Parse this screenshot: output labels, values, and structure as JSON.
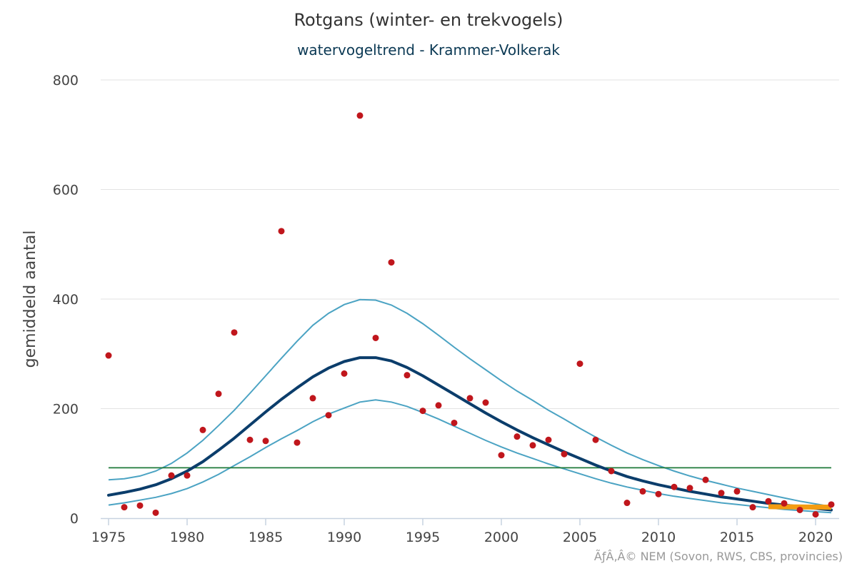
{
  "title": "Rotgans (winter- en trekvogels)",
  "subtitle": "watervogeltrend - Krammer-Volkerak",
  "credits": "ÃƒÂ‚Â© NEM (Sovon, RWS, CBS, provincies)",
  "colors": {
    "points": "#c0161c",
    "trend": "#0b3d6b",
    "ci": "#4ba3c3",
    "reference": "#1f7a3a",
    "recent": "#f39c12",
    "grid": "#e3e3e3"
  },
  "chart_data": {
    "type": "scatter",
    "title": "Rotgans (winter- en trekvogels)",
    "subtitle": "watervogeltrend - Krammer-Volkerak",
    "xlabel": "",
    "ylabel": "gemiddeld aantal",
    "xlim": [
      1975,
      2021
    ],
    "ylim": [
      0,
      800
    ],
    "x_ticks": [
      1975,
      1980,
      1985,
      1990,
      1995,
      2000,
      2005,
      2010,
      2015,
      2020
    ],
    "y_ticks": [
      0,
      200,
      400,
      600,
      800
    ],
    "grid": true,
    "points": {
      "x": [
        1975,
        1976,
        1977,
        1978,
        1979,
        1980,
        1981,
        1982,
        1983,
        1984,
        1985,
        1986,
        1987,
        1988,
        1989,
        1990,
        1991,
        1992,
        1993,
        1994,
        1995,
        1996,
        1997,
        1998,
        1999,
        2000,
        2001,
        2002,
        2003,
        2004,
        2005,
        2006,
        2007,
        2008,
        2009,
        2010,
        2011,
        2012,
        2013,
        2014,
        2015,
        2016,
        2017,
        2018,
        2019,
        2020,
        2021
      ],
      "y": [
        297,
        20,
        23,
        10,
        78,
        78,
        161,
        227,
        339,
        143,
        141,
        524,
        138,
        219,
        188,
        264,
        735,
        329,
        467,
        261,
        196,
        206,
        174,
        219,
        211,
        115,
        149,
        133,
        143,
        117,
        282,
        143,
        86,
        28,
        49,
        44,
        57,
        55,
        70,
        46,
        49,
        20,
        31,
        27,
        15,
        7,
        25
      ]
    },
    "trend": {
      "x": [
        1975,
        1976,
        1977,
        1978,
        1979,
        1980,
        1981,
        1982,
        1983,
        1984,
        1985,
        1986,
        1987,
        1988,
        1989,
        1990,
        1991,
        1992,
        1993,
        1994,
        1995,
        1996,
        1997,
        1998,
        1999,
        2000,
        2001,
        2002,
        2003,
        2004,
        2005,
        2006,
        2007,
        2008,
        2009,
        2010,
        2011,
        2012,
        2013,
        2014,
        2015,
        2016,
        2017,
        2018,
        2019,
        2020,
        2021
      ],
      "y": [
        42,
        47,
        53,
        61,
        72,
        86,
        103,
        124,
        146,
        170,
        194,
        217,
        238,
        258,
        274,
        286,
        293,
        293,
        287,
        275,
        260,
        243,
        226,
        209,
        192,
        176,
        161,
        147,
        134,
        121,
        109,
        97,
        86,
        76,
        68,
        61,
        55,
        49,
        44,
        39,
        35,
        31,
        27,
        24,
        21,
        18,
        15
      ],
      "upper": [
        70,
        72,
        77,
        86,
        100,
        119,
        142,
        169,
        197,
        228,
        260,
        292,
        323,
        352,
        374,
        390,
        399,
        398,
        389,
        374,
        355,
        334,
        312,
        291,
        271,
        251,
        232,
        215,
        197,
        181,
        164,
        148,
        133,
        119,
        107,
        96,
        86,
        77,
        69,
        62,
        55,
        49,
        43,
        37,
        31,
        26,
        21
      ],
      "lower": [
        24,
        28,
        33,
        38,
        45,
        54,
        66,
        80,
        96,
        112,
        129,
        145,
        160,
        176,
        190,
        201,
        212,
        216,
        212,
        204,
        193,
        181,
        168,
        155,
        142,
        130,
        119,
        109,
        99,
        90,
        81,
        72,
        64,
        57,
        51,
        45,
        40,
        36,
        32,
        28,
        25,
        22,
        19,
        16,
        14,
        12,
        10
      ]
    },
    "reference_line": 92,
    "recent_trend": {
      "x": [
        2017,
        2021
      ],
      "y": [
        21,
        20
      ]
    }
  }
}
